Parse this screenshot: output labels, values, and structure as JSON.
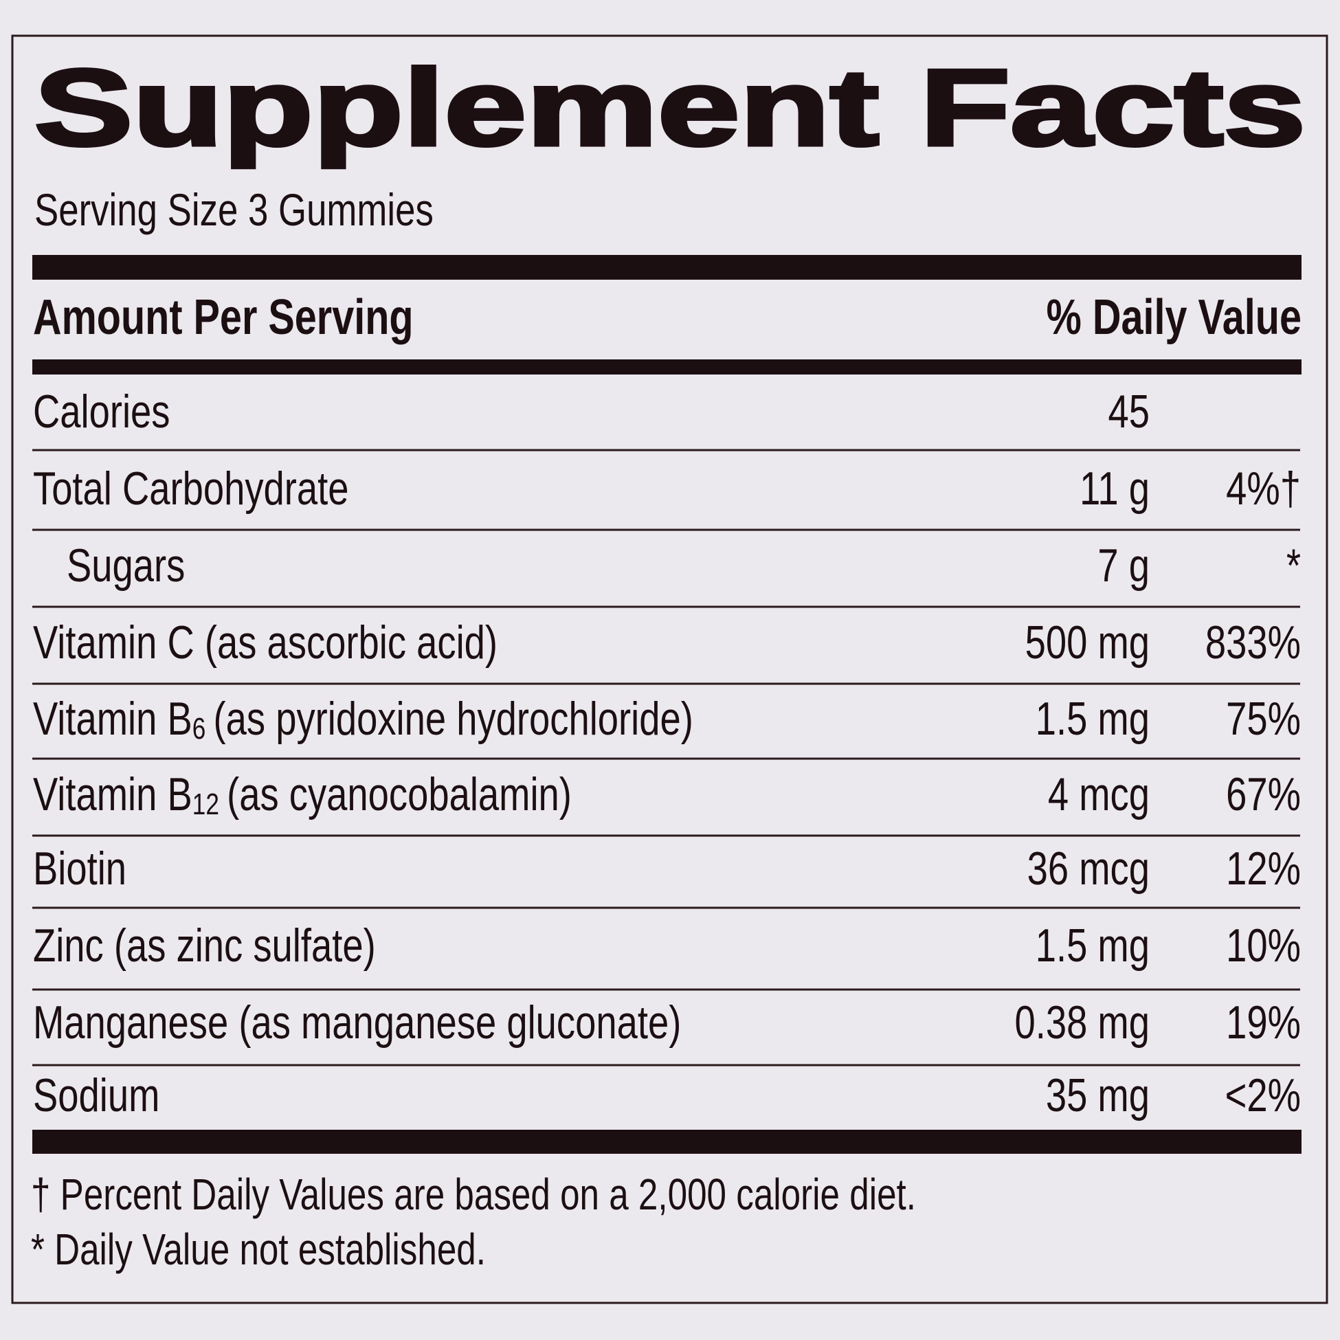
{
  "title": "Supplement Facts",
  "serving_size": "Serving Size 3 Gummies",
  "header": {
    "left": "Amount Per Serving",
    "right": "% Daily Value"
  },
  "rows": [
    {
      "name": "Calories",
      "amount": "45"
    },
    {
      "name": "Total Carbohydrate",
      "amount": "11 g",
      "dv": "4%†"
    },
    {
      "name": "Sugars",
      "amount": "7 g",
      "dv": "*",
      "indent": true
    },
    {
      "name": "Vitamin C (as ascorbic acid)",
      "amount": "500 mg",
      "dv": "833%"
    },
    {
      "name": "Vitamin B",
      "subscript": "6",
      "detail": "(as pyridoxine hydrochloride)",
      "amount": "1.5 mg",
      "dv": "75%"
    },
    {
      "name": "Vitamin B",
      "subscript": "12",
      "detail": "(as cyanocobalamin)",
      "amount": "4 mcg",
      "dv": "67%"
    },
    {
      "name": "Biotin",
      "amount": "36 mcg",
      "dv": "12%"
    },
    {
      "name": "Zinc (as zinc sulfate)",
      "amount": "1.5 mg",
      "dv": "10%"
    },
    {
      "name": "Manganese (as manganese gluconate)",
      "amount": "0.38 mg",
      "dv": "19%"
    },
    {
      "name": "Sodium",
      "amount": "35 mg",
      "dv": "<2%"
    }
  ],
  "footnotes": [
    "† Percent Daily Values are based on a 2,000 calorie diet.",
    "* Daily Value not established."
  ]
}
